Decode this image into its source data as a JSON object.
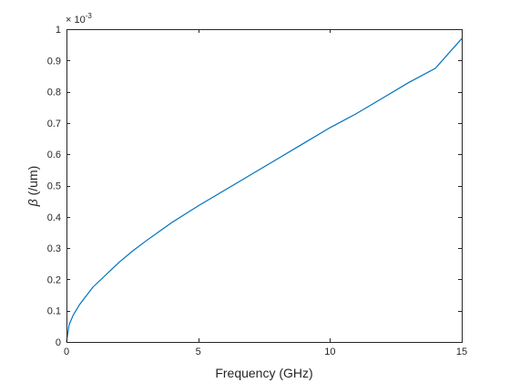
{
  "chart_data": {
    "type": "line",
    "title": "",
    "xlabel": "Frequency (GHz)",
    "ylabel_symbol": "β",
    "ylabel_unit": " (/um)",
    "y_multiplier": {
      "base": "× 10",
      "exponent": "-3"
    },
    "xlim": [
      0,
      15
    ],
    "ylim": [
      0,
      1
    ],
    "xticks": [
      0,
      5,
      10,
      15
    ],
    "yticks": [
      0,
      0.1,
      0.2,
      0.3,
      0.4,
      0.5,
      0.6,
      0.7,
      0.8,
      0.9,
      1
    ],
    "xtick_labels": [
      "0",
      "5",
      "10",
      "15"
    ],
    "ytick_labels": [
      "0",
      "0.1",
      "0.2",
      "0.3",
      "0.4",
      "0.5",
      "0.6",
      "0.7",
      "0.8",
      "0.9",
      "1"
    ],
    "grid": false,
    "box": true,
    "series": [
      {
        "color": "#0072bd",
        "x": [
          0,
          0.1,
          0.25,
          0.5,
          1,
          1.5,
          2,
          2.5,
          3,
          3.5,
          4,
          5,
          6,
          7,
          8,
          9,
          10,
          11,
          12,
          13,
          14,
          15
        ],
        "y": [
          0,
          0.055,
          0.085,
          0.12,
          0.175,
          0.215,
          0.255,
          0.29,
          0.322,
          0.352,
          0.382,
          0.435,
          0.485,
          0.535,
          0.585,
          0.635,
          0.685,
          0.73,
          0.78,
          0.83,
          0.875,
          0.97
        ]
      }
    ]
  }
}
